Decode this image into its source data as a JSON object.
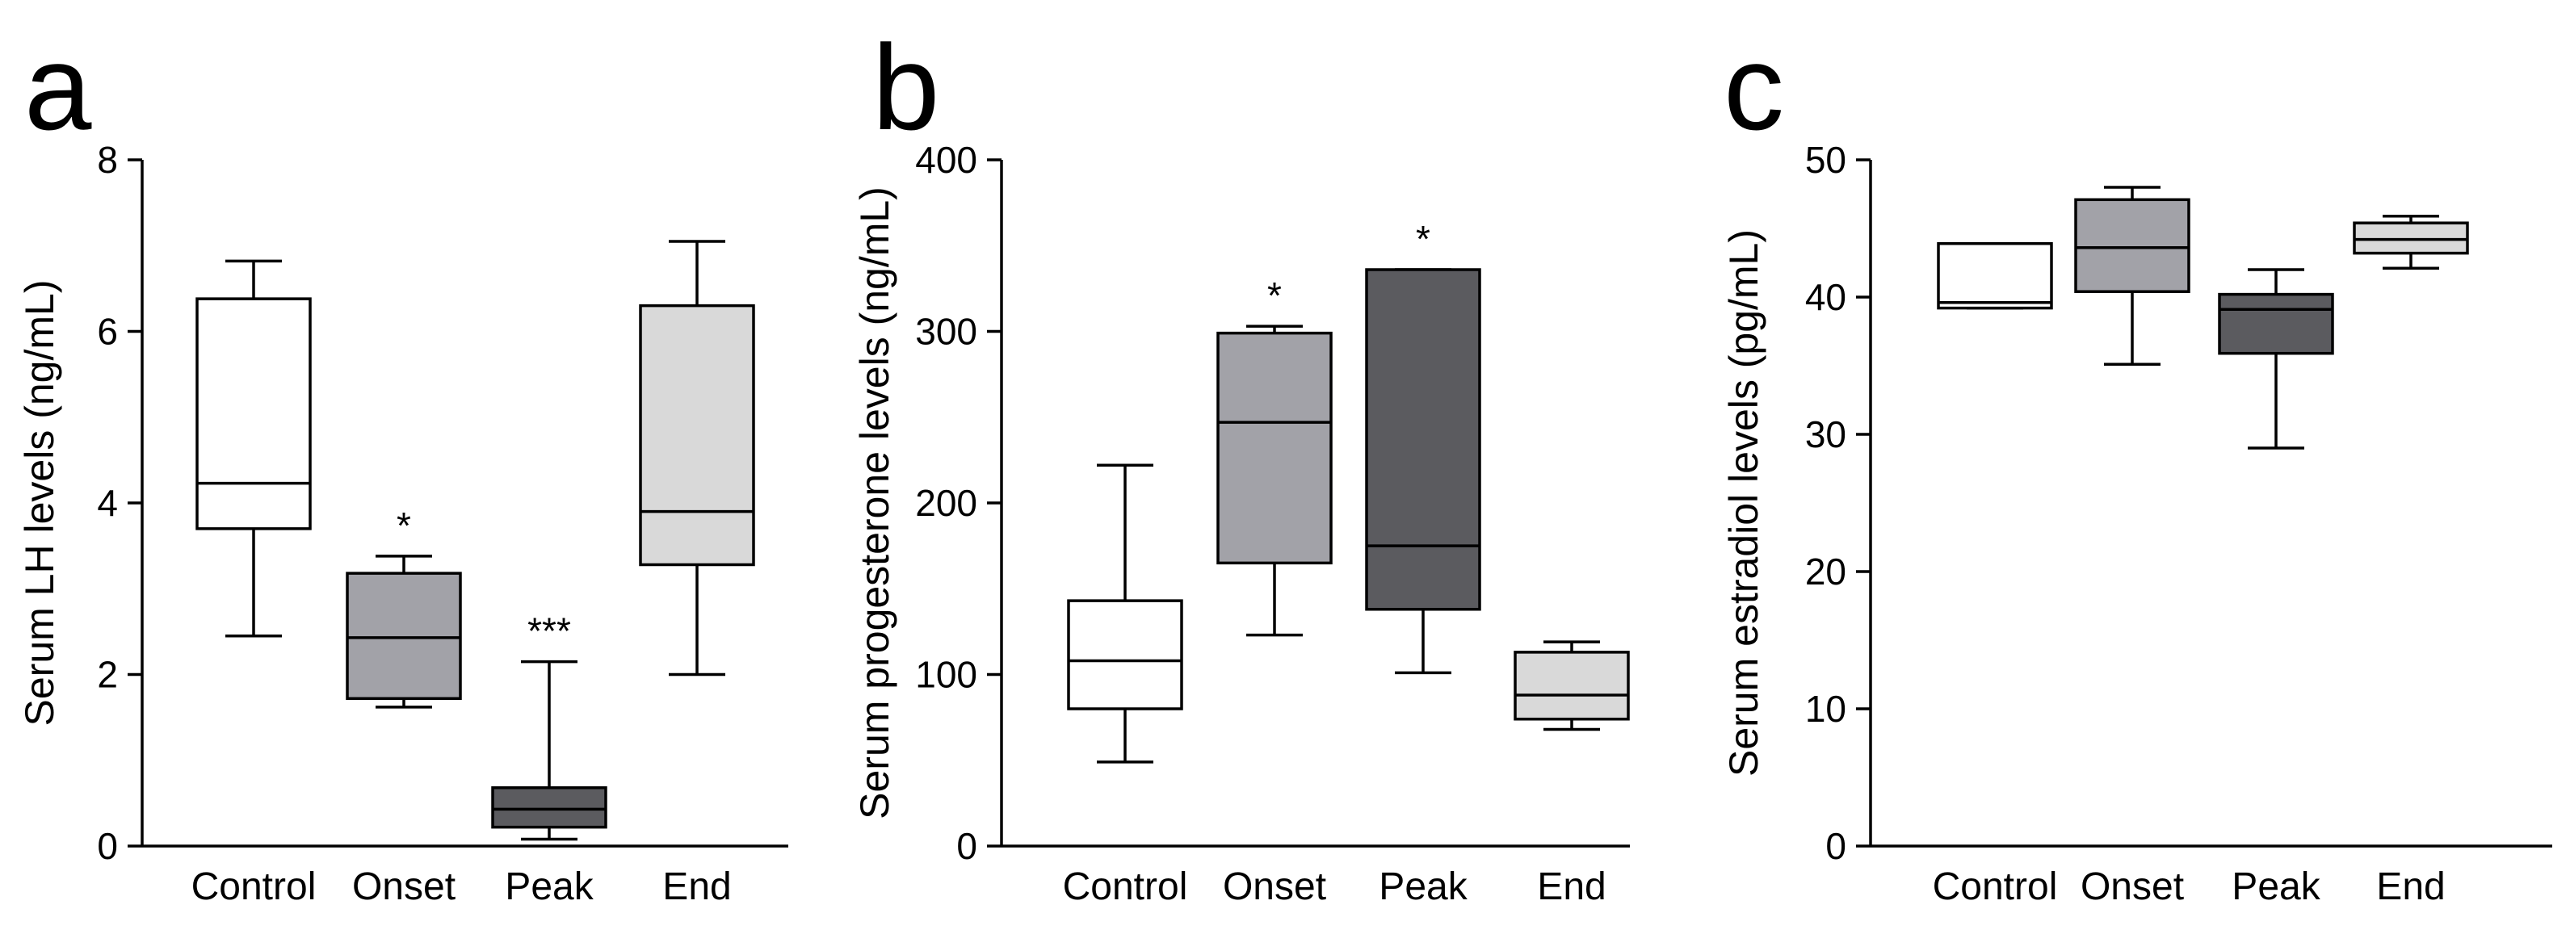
{
  "figure": {
    "type": "box-plot panels"
  },
  "chart_data": [
    {
      "type": "box",
      "panel_label": "a",
      "title": "",
      "xlabel": "",
      "ylabel": "Serum LH levels (ng/mL)",
      "ylim": [
        0,
        8
      ],
      "yticks": [
        0,
        2,
        4,
        6,
        8
      ],
      "ytick_labels": [
        "0",
        "2",
        "4",
        "6",
        "8"
      ],
      "categories": [
        "Control",
        "Onset",
        "Peak",
        "End"
      ],
      "boxes": [
        {
          "name": "Control",
          "min": 2.45,
          "q1": 3.7,
          "median": 4.23,
          "q3": 6.38,
          "max": 6.82,
          "fill": "#ffffff",
          "median_color": "#000000",
          "sig": ""
        },
        {
          "name": "Onset",
          "min": 1.62,
          "q1": 1.72,
          "median": 2.43,
          "q3": 3.18,
          "max": 3.38,
          "fill": "#a2a2a8",
          "median_color": "#000000",
          "sig": "*"
        },
        {
          "name": "Peak",
          "min": 0.08,
          "q1": 0.22,
          "median": 0.43,
          "q3": 0.68,
          "max": 2.15,
          "fill": "#5b5b5f",
          "median_color": "#000000",
          "sig": "***"
        },
        {
          "name": "End",
          "min": 2.0,
          "q1": 3.28,
          "median": 3.9,
          "q3": 6.3,
          "max": 7.05,
          "fill": "#d9d9d9",
          "median_color": "#000000",
          "sig": ""
        }
      ]
    },
    {
      "type": "box",
      "panel_label": "b",
      "title": "",
      "xlabel": "",
      "ylabel": "Serum progesterone levels (ng/mL)",
      "ylim": [
        0,
        400
      ],
      "yticks": [
        0,
        100,
        200,
        300,
        400
      ],
      "ytick_labels": [
        "0",
        "100",
        "200",
        "300",
        "400"
      ],
      "categories": [
        "Control",
        "Onset",
        "Peak",
        "End"
      ],
      "boxes": [
        {
          "name": "Control",
          "min": 49,
          "q1": 80,
          "median": 108,
          "q3": 143,
          "max": 222,
          "fill": "#ffffff",
          "median_color": "#000000",
          "sig": ""
        },
        {
          "name": "Onset",
          "min": 123,
          "q1": 165,
          "median": 247,
          "q3": 299,
          "max": 303,
          "fill": "#a2a2a8",
          "median_color": "#000000",
          "sig": "*"
        },
        {
          "name": "Peak",
          "min": 101,
          "q1": 138,
          "median": 175,
          "q3": 336,
          "max": 336,
          "fill": "#5b5b5f",
          "median_color": "#000000",
          "sig": "*"
        },
        {
          "name": "End",
          "min": 68,
          "q1": 74,
          "median": 88,
          "q3": 113,
          "max": 119,
          "fill": "#d9d9d9",
          "median_color": "#000000",
          "sig": ""
        }
      ]
    },
    {
      "type": "box",
      "panel_label": "c",
      "title": "",
      "xlabel": "",
      "ylabel": "Serum estradiol levels (pg/mL)",
      "ylim": [
        0,
        50
      ],
      "yticks": [
        0,
        10,
        20,
        30,
        40,
        50
      ],
      "ytick_labels": [
        "0",
        "10",
        "20",
        "30",
        "40",
        "50"
      ],
      "categories": [
        "Control",
        "Onset",
        "Peak",
        "End"
      ],
      "boxes": [
        {
          "name": "Control",
          "min": 39.2,
          "q1": 39.2,
          "median": 39.6,
          "q3": 43.9,
          "max": 43.9,
          "fill": "#ffffff",
          "median_color": "#000000",
          "sig": ""
        },
        {
          "name": "Onset",
          "min": 35.1,
          "q1": 40.4,
          "median": 43.6,
          "q3": 47.1,
          "max": 48.0,
          "fill": "#a2a2a8",
          "median_color": "#000000",
          "sig": ""
        },
        {
          "name": "Peak",
          "min": 29.0,
          "q1": 35.9,
          "median": 39.1,
          "q3": 40.2,
          "max": 42.0,
          "fill": "#5b5b5f",
          "median_color": "#000000",
          "sig": ""
        },
        {
          "name": "End",
          "min": 42.1,
          "q1": 43.2,
          "median": 44.2,
          "q3": 45.4,
          "max": 45.9,
          "fill": "#d9d9d9",
          "median_color": "#000000",
          "sig": ""
        }
      ]
    }
  ]
}
